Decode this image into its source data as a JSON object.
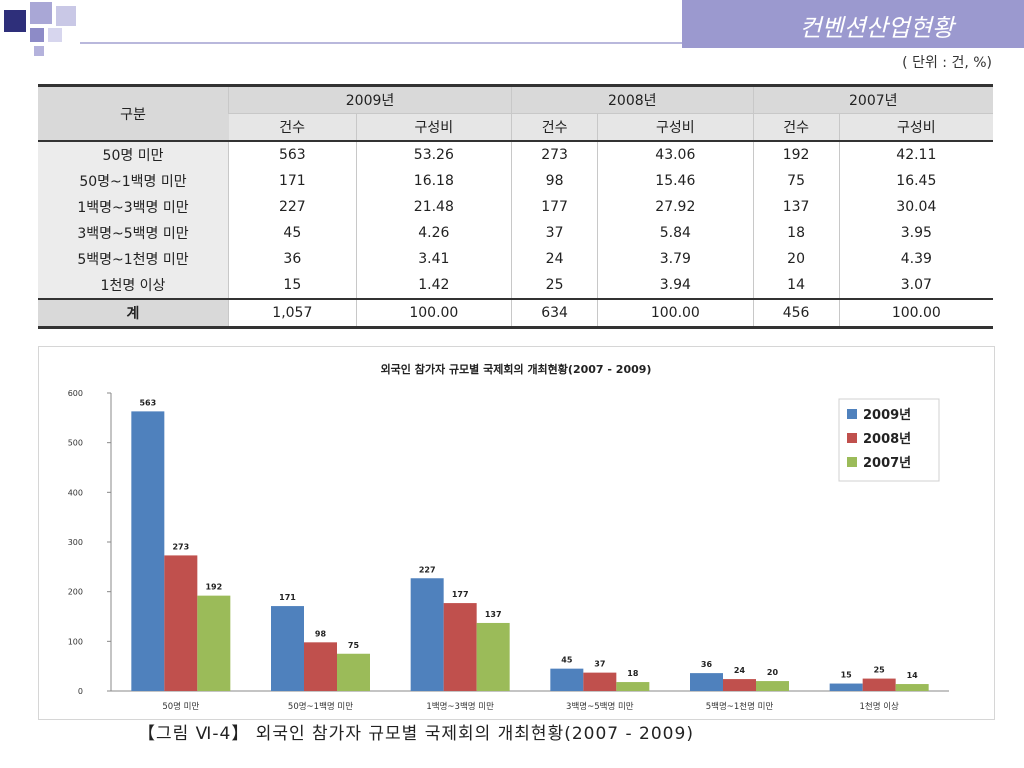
{
  "slide": {
    "title": "컨벤션산업현황",
    "unit_note": "( 단위 : 건, %)",
    "figure_caption": "【그림 Ⅵ-4】 외국인 참가자 규모별 국제회의 개최현황(2007 - 2009)"
  },
  "table": {
    "row_header": "구분",
    "years": [
      "2009년",
      "2008년",
      "2007년"
    ],
    "sub_headers": [
      "건수",
      "구성비"
    ],
    "rows": [
      {
        "label": "50명 미만",
        "values": [
          "563",
          "53.26",
          "273",
          "43.06",
          "192",
          "42.11"
        ]
      },
      {
        "label": "50명~1백명 미만",
        "values": [
          "171",
          "16.18",
          "98",
          "15.46",
          "75",
          "16.45"
        ]
      },
      {
        "label": "1백명~3백명 미만",
        "values": [
          "227",
          "21.48",
          "177",
          "27.92",
          "137",
          "30.04"
        ]
      },
      {
        "label": "3백명~5백명 미만",
        "values": [
          "45",
          "4.26",
          "37",
          "5.84",
          "18",
          "3.95"
        ]
      },
      {
        "label": "5백명~1천명 미만",
        "values": [
          "36",
          "3.41",
          "24",
          "3.79",
          "20",
          "4.39"
        ]
      },
      {
        "label": "1천명 이상",
        "values": [
          "15",
          "1.42",
          "25",
          "3.94",
          "14",
          "3.07"
        ]
      }
    ],
    "total": {
      "label": "계",
      "values": [
        "1,057",
        "100.00",
        "634",
        "100.00",
        "456",
        "100.00"
      ]
    }
  },
  "chart_data": {
    "type": "bar",
    "title": "외국인 참가자 규모별 국제회의 개최현황(2007 - 2009)",
    "categories": [
      "50명 미만",
      "50명~1백명 미만",
      "1백명~3백명 미만",
      "3백명~5백명 미만",
      "5백명~1천명 미만",
      "1천명 이상"
    ],
    "series": [
      {
        "name": "2009년",
        "color": "#4f81bd",
        "values": [
          563,
          171,
          227,
          45,
          36,
          15
        ]
      },
      {
        "name": "2008년",
        "color": "#c0504d",
        "values": [
          273,
          98,
          177,
          37,
          24,
          25
        ]
      },
      {
        "name": "2007년",
        "color": "#9bbb59",
        "values": [
          192,
          75,
          137,
          18,
          20,
          14
        ]
      }
    ],
    "ylim": [
      0,
      600
    ],
    "yticks": [
      0,
      100,
      200,
      300,
      400,
      500,
      600
    ],
    "legend": "top-right",
    "grid": false
  }
}
